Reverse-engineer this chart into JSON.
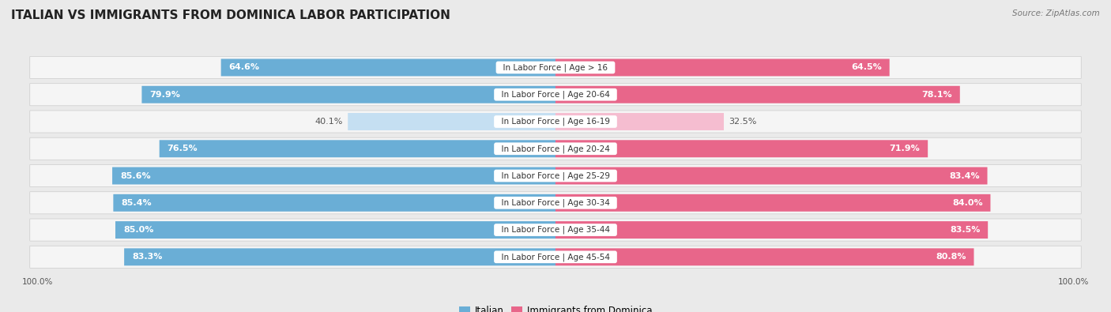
{
  "title": "Italian vs Immigrants from Dominica Labor Participation",
  "source": "Source: ZipAtlas.com",
  "categories": [
    "In Labor Force | Age > 16",
    "In Labor Force | Age 20-64",
    "In Labor Force | Age 16-19",
    "In Labor Force | Age 20-24",
    "In Labor Force | Age 25-29",
    "In Labor Force | Age 30-34",
    "In Labor Force | Age 35-44",
    "In Labor Force | Age 45-54"
  ],
  "italian_values": [
    64.6,
    79.9,
    40.1,
    76.5,
    85.6,
    85.4,
    85.0,
    83.3
  ],
  "dominica_values": [
    64.5,
    78.1,
    32.5,
    71.9,
    83.4,
    84.0,
    83.5,
    80.8
  ],
  "italian_color": "#6aaed6",
  "dominica_color": "#e8668a",
  "italian_color_light": "#c5dff2",
  "dominica_color_light": "#f5bdd0",
  "bar_height": 0.62,
  "max_value": 100.0,
  "bg_color": "#eaeaea",
  "row_bg_color": "#f5f5f5",
  "label_fontsize": 7.5,
  "title_fontsize": 11,
  "legend_fontsize": 8.5,
  "value_fontsize": 8.0
}
